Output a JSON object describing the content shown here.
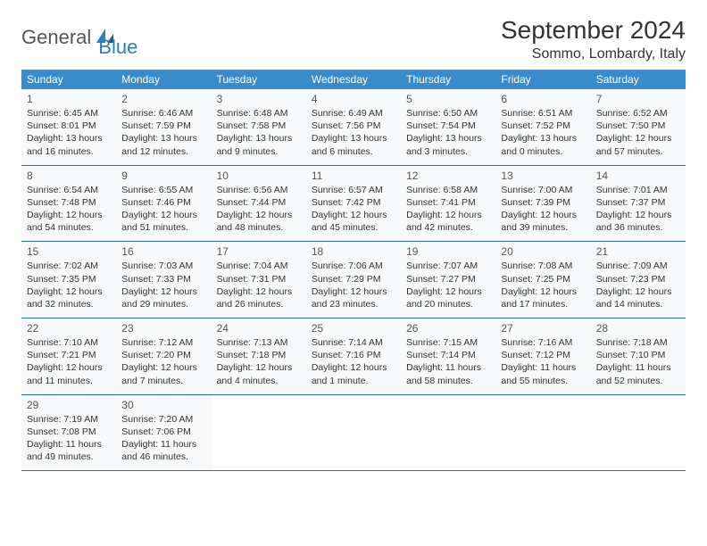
{
  "brand": {
    "text1": "General",
    "text2": "Blue",
    "icon_color": "#2b7fbf"
  },
  "title": "September 2024",
  "location": "Sommo, Lombardy, Italy",
  "colors": {
    "header_bg": "#3a8bc9",
    "header_fg": "#ffffff",
    "row_border": "#2b6ea8",
    "cell_bg": "#f8f9fa",
    "text": "#333333"
  },
  "day_names": [
    "Sunday",
    "Monday",
    "Tuesday",
    "Wednesday",
    "Thursday",
    "Friday",
    "Saturday"
  ],
  "weeks": [
    [
      {
        "n": "1",
        "sr": "Sunrise: 6:45 AM",
        "ss": "Sunset: 8:01 PM",
        "d1": "Daylight: 13 hours",
        "d2": "and 16 minutes."
      },
      {
        "n": "2",
        "sr": "Sunrise: 6:46 AM",
        "ss": "Sunset: 7:59 PM",
        "d1": "Daylight: 13 hours",
        "d2": "and 12 minutes."
      },
      {
        "n": "3",
        "sr": "Sunrise: 6:48 AM",
        "ss": "Sunset: 7:58 PM",
        "d1": "Daylight: 13 hours",
        "d2": "and 9 minutes."
      },
      {
        "n": "4",
        "sr": "Sunrise: 6:49 AM",
        "ss": "Sunset: 7:56 PM",
        "d1": "Daylight: 13 hours",
        "d2": "and 6 minutes."
      },
      {
        "n": "5",
        "sr": "Sunrise: 6:50 AM",
        "ss": "Sunset: 7:54 PM",
        "d1": "Daylight: 13 hours",
        "d2": "and 3 minutes."
      },
      {
        "n": "6",
        "sr": "Sunrise: 6:51 AM",
        "ss": "Sunset: 7:52 PM",
        "d1": "Daylight: 13 hours",
        "d2": "and 0 minutes."
      },
      {
        "n": "7",
        "sr": "Sunrise: 6:52 AM",
        "ss": "Sunset: 7:50 PM",
        "d1": "Daylight: 12 hours",
        "d2": "and 57 minutes."
      }
    ],
    [
      {
        "n": "8",
        "sr": "Sunrise: 6:54 AM",
        "ss": "Sunset: 7:48 PM",
        "d1": "Daylight: 12 hours",
        "d2": "and 54 minutes."
      },
      {
        "n": "9",
        "sr": "Sunrise: 6:55 AM",
        "ss": "Sunset: 7:46 PM",
        "d1": "Daylight: 12 hours",
        "d2": "and 51 minutes."
      },
      {
        "n": "10",
        "sr": "Sunrise: 6:56 AM",
        "ss": "Sunset: 7:44 PM",
        "d1": "Daylight: 12 hours",
        "d2": "and 48 minutes."
      },
      {
        "n": "11",
        "sr": "Sunrise: 6:57 AM",
        "ss": "Sunset: 7:42 PM",
        "d1": "Daylight: 12 hours",
        "d2": "and 45 minutes."
      },
      {
        "n": "12",
        "sr": "Sunrise: 6:58 AM",
        "ss": "Sunset: 7:41 PM",
        "d1": "Daylight: 12 hours",
        "d2": "and 42 minutes."
      },
      {
        "n": "13",
        "sr": "Sunrise: 7:00 AM",
        "ss": "Sunset: 7:39 PM",
        "d1": "Daylight: 12 hours",
        "d2": "and 39 minutes."
      },
      {
        "n": "14",
        "sr": "Sunrise: 7:01 AM",
        "ss": "Sunset: 7:37 PM",
        "d1": "Daylight: 12 hours",
        "d2": "and 36 minutes."
      }
    ],
    [
      {
        "n": "15",
        "sr": "Sunrise: 7:02 AM",
        "ss": "Sunset: 7:35 PM",
        "d1": "Daylight: 12 hours",
        "d2": "and 32 minutes."
      },
      {
        "n": "16",
        "sr": "Sunrise: 7:03 AM",
        "ss": "Sunset: 7:33 PM",
        "d1": "Daylight: 12 hours",
        "d2": "and 29 minutes."
      },
      {
        "n": "17",
        "sr": "Sunrise: 7:04 AM",
        "ss": "Sunset: 7:31 PM",
        "d1": "Daylight: 12 hours",
        "d2": "and 26 minutes."
      },
      {
        "n": "18",
        "sr": "Sunrise: 7:06 AM",
        "ss": "Sunset: 7:29 PM",
        "d1": "Daylight: 12 hours",
        "d2": "and 23 minutes."
      },
      {
        "n": "19",
        "sr": "Sunrise: 7:07 AM",
        "ss": "Sunset: 7:27 PM",
        "d1": "Daylight: 12 hours",
        "d2": "and 20 minutes."
      },
      {
        "n": "20",
        "sr": "Sunrise: 7:08 AM",
        "ss": "Sunset: 7:25 PM",
        "d1": "Daylight: 12 hours",
        "d2": "and 17 minutes."
      },
      {
        "n": "21",
        "sr": "Sunrise: 7:09 AM",
        "ss": "Sunset: 7:23 PM",
        "d1": "Daylight: 12 hours",
        "d2": "and 14 minutes."
      }
    ],
    [
      {
        "n": "22",
        "sr": "Sunrise: 7:10 AM",
        "ss": "Sunset: 7:21 PM",
        "d1": "Daylight: 12 hours",
        "d2": "and 11 minutes."
      },
      {
        "n": "23",
        "sr": "Sunrise: 7:12 AM",
        "ss": "Sunset: 7:20 PM",
        "d1": "Daylight: 12 hours",
        "d2": "and 7 minutes."
      },
      {
        "n": "24",
        "sr": "Sunrise: 7:13 AM",
        "ss": "Sunset: 7:18 PM",
        "d1": "Daylight: 12 hours",
        "d2": "and 4 minutes."
      },
      {
        "n": "25",
        "sr": "Sunrise: 7:14 AM",
        "ss": "Sunset: 7:16 PM",
        "d1": "Daylight: 12 hours",
        "d2": "and 1 minute."
      },
      {
        "n": "26",
        "sr": "Sunrise: 7:15 AM",
        "ss": "Sunset: 7:14 PM",
        "d1": "Daylight: 11 hours",
        "d2": "and 58 minutes."
      },
      {
        "n": "27",
        "sr": "Sunrise: 7:16 AM",
        "ss": "Sunset: 7:12 PM",
        "d1": "Daylight: 11 hours",
        "d2": "and 55 minutes."
      },
      {
        "n": "28",
        "sr": "Sunrise: 7:18 AM",
        "ss": "Sunset: 7:10 PM",
        "d1": "Daylight: 11 hours",
        "d2": "and 52 minutes."
      }
    ],
    [
      {
        "n": "29",
        "sr": "Sunrise: 7:19 AM",
        "ss": "Sunset: 7:08 PM",
        "d1": "Daylight: 11 hours",
        "d2": "and 49 minutes."
      },
      {
        "n": "30",
        "sr": "Sunrise: 7:20 AM",
        "ss": "Sunset: 7:06 PM",
        "d1": "Daylight: 11 hours",
        "d2": "and 46 minutes."
      },
      null,
      null,
      null,
      null,
      null
    ]
  ]
}
